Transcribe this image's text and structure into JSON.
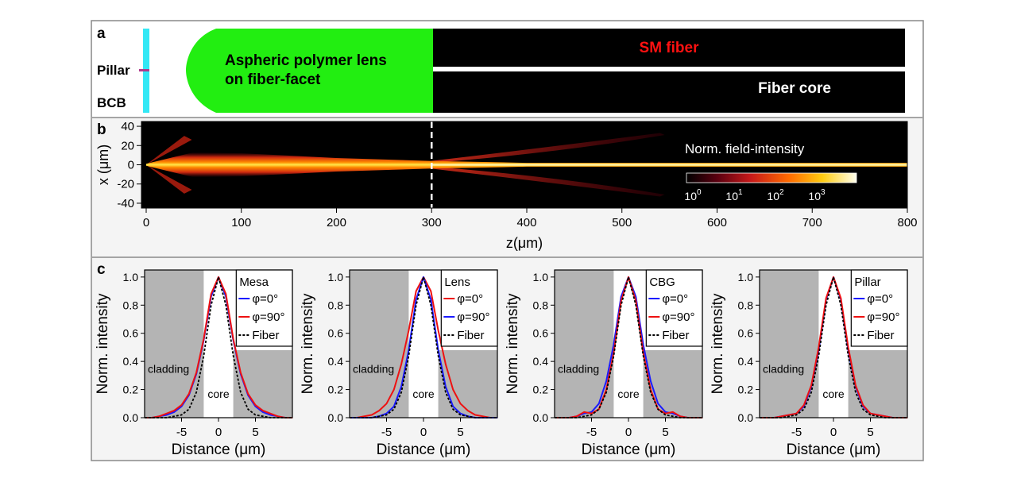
{
  "panel_a": {
    "letter": "a",
    "pillar_label": "Pillar",
    "bcb_label": "BCB",
    "lens_label_line1": "Aspheric polymer lens",
    "lens_label_line2": "on fiber-facet",
    "fiber_label": "SM fiber",
    "core_label": "Fiber core",
    "colors": {
      "bcb": "#33e8f5",
      "pillar": "#b03a8c",
      "lens": "#22ee11",
      "fiber": "#000000",
      "fiber_label": "#ff1111"
    }
  },
  "panel_b": {
    "letter": "b",
    "ylabel": "x (μm)",
    "xlabel": "z(μm)",
    "colorbar_title": "Norm. field-intensity",
    "colorbar_ticks": [
      {
        "base": "10",
        "exp": "0"
      },
      {
        "base": "10",
        "exp": "1"
      },
      {
        "base": "10",
        "exp": "2"
      },
      {
        "base": "10",
        "exp": "3"
      }
    ],
    "dashed_line_z": 300
  },
  "panel_c": {
    "letter": "c",
    "ylabel": "Norm. intensity",
    "xlabel": "Distance (μm)",
    "cladding_label": "cladding",
    "core_label": "core"
  },
  "chart_data": [
    {
      "type": "heatmap",
      "title": "",
      "xlabel": "z(μm)",
      "ylabel": "x (μm)",
      "xlim": [
        -5,
        800
      ],
      "ylim": [
        -45,
        45
      ],
      "x_ticks": [
        0,
        100,
        200,
        300,
        400,
        500,
        600,
        700,
        800
      ],
      "y_ticks": [
        40,
        20,
        0,
        -20,
        -40
      ],
      "colorbar": {
        "label": "Norm. field-intensity",
        "scale": "log",
        "ticks": [
          "10^0",
          "10^1",
          "10^2",
          "10^3"
        ]
      },
      "annotations": [
        {
          "type": "dashed-vertical-line",
          "z": 300
        }
      ],
      "beam_path": [
        {
          "z": 0,
          "width": 2
        },
        {
          "z": 50,
          "width": 26
        },
        {
          "z": 100,
          "width": 24
        },
        {
          "z": 200,
          "width": 14
        },
        {
          "z": 300,
          "width": 8
        },
        {
          "z": 400,
          "width": 4
        },
        {
          "z": 800,
          "width": 4
        }
      ]
    },
    {
      "type": "line",
      "title": "Mesa",
      "xlabel": "Distance (μm)",
      "ylabel": "Norm. intensity",
      "xlim": [
        -10,
        10
      ],
      "ylim": [
        0,
        1.05
      ],
      "x_ticks": [
        -5,
        0,
        5
      ],
      "y_ticks": [
        0.0,
        0.2,
        0.4,
        0.6,
        0.8,
        1.0
      ],
      "core_region": [
        -2,
        2
      ],
      "legend_position": "top-right",
      "series": [
        {
          "name": "φ=0°",
          "color": "#1a1aff",
          "style": "solid",
          "x": [
            -10,
            -9,
            -8,
            -7,
            -6,
            -5,
            -4,
            -3,
            -2,
            -1,
            0,
            1,
            2,
            3,
            4,
            5,
            6,
            7,
            8,
            9,
            10
          ],
          "y": [
            0.0,
            0.0,
            0.01,
            0.02,
            0.04,
            0.08,
            0.16,
            0.31,
            0.55,
            0.86,
            1.0,
            0.86,
            0.55,
            0.31,
            0.16,
            0.08,
            0.04,
            0.02,
            0.01,
            0.0,
            0.0
          ]
        },
        {
          "name": "φ=90°",
          "color": "#ee1111",
          "style": "solid",
          "x": [
            -10,
            -9,
            -8,
            -7,
            -6,
            -5,
            -4,
            -3,
            -2,
            -1,
            0,
            1,
            2,
            3,
            4,
            5,
            6,
            7,
            8,
            9,
            10
          ],
          "y": [
            0.0,
            0.0,
            0.01,
            0.03,
            0.05,
            0.09,
            0.17,
            0.32,
            0.56,
            0.88,
            1.0,
            0.88,
            0.56,
            0.32,
            0.17,
            0.09,
            0.05,
            0.03,
            0.01,
            0.0,
            0.0
          ]
        },
        {
          "name": "Fiber",
          "color": "#000000",
          "style": "dashed",
          "x": [
            -10,
            -9,
            -8,
            -7,
            -6,
            -5,
            -4,
            -3,
            -2,
            -1,
            0,
            1,
            2,
            3,
            4,
            5,
            6,
            7,
            8,
            9,
            10
          ],
          "y": [
            0.0,
            0.0,
            0.0,
            0.0,
            0.01,
            0.02,
            0.06,
            0.18,
            0.44,
            0.8,
            1.0,
            0.8,
            0.44,
            0.18,
            0.06,
            0.02,
            0.01,
            0.0,
            0.0,
            0.0,
            0.0
          ]
        }
      ]
    },
    {
      "type": "line",
      "title": "Lens",
      "xlabel": "Distance (μm)",
      "ylabel": "Norm. intensity",
      "xlim": [
        -10,
        10
      ],
      "ylim": [
        0,
        1.05
      ],
      "x_ticks": [
        -5,
        0,
        5
      ],
      "y_ticks": [
        0.0,
        0.2,
        0.4,
        0.6,
        0.8,
        1.0
      ],
      "core_region": [
        -2,
        2
      ],
      "legend_position": "top-right",
      "series": [
        {
          "name": "φ=0°",
          "color": "#ee1111",
          "style": "solid",
          "x": [
            -10,
            -9,
            -8,
            -7,
            -6,
            -5,
            -4,
            -3,
            -2,
            -1,
            0,
            1,
            2,
            3,
            4,
            5,
            6,
            7,
            8,
            9,
            10
          ],
          "y": [
            0.0,
            0.0,
            0.01,
            0.02,
            0.05,
            0.1,
            0.2,
            0.38,
            0.62,
            0.9,
            1.0,
            0.9,
            0.62,
            0.38,
            0.2,
            0.1,
            0.05,
            0.02,
            0.01,
            0.0,
            0.0
          ]
        },
        {
          "name": "φ=90°",
          "color": "#1a1aff",
          "style": "solid",
          "x": [
            -10,
            -9,
            -8,
            -7,
            -6,
            -5,
            -4,
            -3,
            -2,
            -1,
            0,
            1,
            2,
            3,
            4,
            5,
            6,
            7,
            8,
            9,
            10
          ],
          "y": [
            0.0,
            0.0,
            0.0,
            0.0,
            0.01,
            0.03,
            0.08,
            0.22,
            0.48,
            0.84,
            1.0,
            0.84,
            0.48,
            0.22,
            0.08,
            0.03,
            0.01,
            0.0,
            0.0,
            0.0,
            0.0
          ]
        },
        {
          "name": "Fiber",
          "color": "#000000",
          "style": "dashed",
          "x": [
            -10,
            -9,
            -8,
            -7,
            -6,
            -5,
            -4,
            -3,
            -2,
            -1,
            0,
            1,
            2,
            3,
            4,
            5,
            6,
            7,
            8,
            9,
            10
          ],
          "y": [
            0.0,
            0.0,
            0.0,
            0.0,
            0.01,
            0.02,
            0.06,
            0.18,
            0.44,
            0.8,
            1.0,
            0.8,
            0.44,
            0.18,
            0.06,
            0.02,
            0.01,
            0.0,
            0.0,
            0.0,
            0.0
          ]
        }
      ]
    },
    {
      "type": "line",
      "title": "CBG",
      "xlabel": "Distance (μm)",
      "ylabel": "Norm. intensity",
      "xlim": [
        -10,
        10
      ],
      "ylim": [
        0,
        1.05
      ],
      "x_ticks": [
        -5,
        0,
        5
      ],
      "y_ticks": [
        0.0,
        0.2,
        0.4,
        0.6,
        0.8,
        1.0
      ],
      "core_region": [
        -2,
        2
      ],
      "legend_position": "top-right",
      "series": [
        {
          "name": "φ=0°",
          "color": "#1a1aff",
          "style": "solid",
          "x": [
            -10,
            -9,
            -8,
            -7,
            -6,
            -5,
            -4,
            -3,
            -2,
            -1,
            0,
            1,
            2,
            3,
            4,
            5,
            6,
            7,
            8,
            9,
            10
          ],
          "y": [
            0.0,
            0.0,
            0.0,
            0.01,
            0.03,
            0.04,
            0.1,
            0.26,
            0.52,
            0.86,
            1.0,
            0.86,
            0.52,
            0.26,
            0.1,
            0.04,
            0.03,
            0.01,
            0.0,
            0.0,
            0.0
          ]
        },
        {
          "name": "φ=90°",
          "color": "#ee1111",
          "style": "solid",
          "x": [
            -10,
            -9,
            -8,
            -7,
            -6,
            -5,
            -4,
            -3,
            -2,
            -1,
            0,
            1,
            2,
            3,
            4,
            5,
            6,
            7,
            8,
            9,
            10
          ],
          "y": [
            0.0,
            0.0,
            0.0,
            0.01,
            0.04,
            0.03,
            0.06,
            0.2,
            0.46,
            0.83,
            1.0,
            0.83,
            0.46,
            0.2,
            0.06,
            0.03,
            0.04,
            0.01,
            0.0,
            0.0,
            0.0
          ]
        },
        {
          "name": "Fiber",
          "color": "#000000",
          "style": "dashed",
          "x": [
            -10,
            -9,
            -8,
            -7,
            -6,
            -5,
            -4,
            -3,
            -2,
            -1,
            0,
            1,
            2,
            3,
            4,
            5,
            6,
            7,
            8,
            9,
            10
          ],
          "y": [
            0.0,
            0.0,
            0.0,
            0.0,
            0.01,
            0.02,
            0.06,
            0.18,
            0.44,
            0.8,
            1.0,
            0.8,
            0.44,
            0.18,
            0.06,
            0.02,
            0.01,
            0.0,
            0.0,
            0.0,
            0.0
          ]
        }
      ]
    },
    {
      "type": "line",
      "title": "Pillar",
      "xlabel": "Distance (μm)",
      "ylabel": "Norm. intensity",
      "xlim": [
        -10,
        10
      ],
      "ylim": [
        0,
        1.05
      ],
      "x_ticks": [
        -5,
        0,
        5
      ],
      "y_ticks": [
        0.0,
        0.2,
        0.4,
        0.6,
        0.8,
        1.0
      ],
      "core_region": [
        -2,
        2
      ],
      "legend_position": "top-right",
      "series": [
        {
          "name": "φ=0°",
          "color": "#1a1aff",
          "style": "solid",
          "x": [
            -10,
            -9,
            -8,
            -7,
            -6,
            -5,
            -4,
            -3,
            -2,
            -1,
            0,
            1,
            2,
            3,
            4,
            5,
            6,
            7,
            8,
            9,
            10
          ],
          "y": [
            0.0,
            0.0,
            0.0,
            0.01,
            0.02,
            0.03,
            0.08,
            0.22,
            0.48,
            0.84,
            1.0,
            0.84,
            0.48,
            0.22,
            0.08,
            0.03,
            0.02,
            0.01,
            0.0,
            0.0,
            0.0
          ]
        },
        {
          "name": "φ=90°",
          "color": "#ee1111",
          "style": "solid",
          "x": [
            -10,
            -9,
            -8,
            -7,
            -6,
            -5,
            -4,
            -3,
            -2,
            -1,
            0,
            1,
            2,
            3,
            4,
            5,
            6,
            7,
            8,
            9,
            10
          ],
          "y": [
            0.0,
            0.0,
            0.0,
            0.01,
            0.02,
            0.03,
            0.09,
            0.23,
            0.5,
            0.85,
            1.0,
            0.85,
            0.5,
            0.23,
            0.09,
            0.03,
            0.02,
            0.01,
            0.0,
            0.0,
            0.0
          ]
        },
        {
          "name": "Fiber",
          "color": "#000000",
          "style": "dashed",
          "x": [
            -10,
            -9,
            -8,
            -7,
            -6,
            -5,
            -4,
            -3,
            -2,
            -1,
            0,
            1,
            2,
            3,
            4,
            5,
            6,
            7,
            8,
            9,
            10
          ],
          "y": [
            0.0,
            0.0,
            0.0,
            0.0,
            0.01,
            0.02,
            0.06,
            0.18,
            0.44,
            0.8,
            1.0,
            0.8,
            0.44,
            0.18,
            0.06,
            0.02,
            0.01,
            0.0,
            0.0,
            0.0,
            0.0
          ]
        }
      ]
    }
  ]
}
